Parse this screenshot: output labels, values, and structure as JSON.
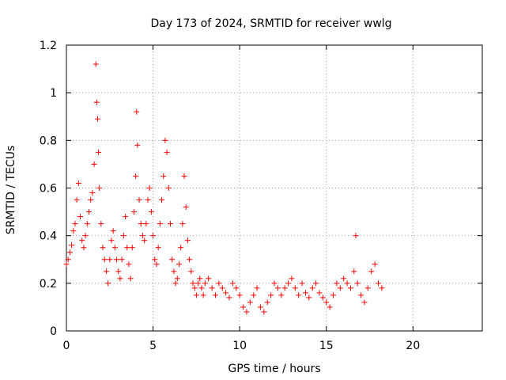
{
  "chart_data": {
    "type": "scatter",
    "title": "Day 173 of 2024, SRMTID for receiver wwlg",
    "xlabel": "GPS time / hours",
    "ylabel": "SRMTID / TECUs",
    "xlim": [
      0,
      24
    ],
    "ylim": [
      0,
      1.2
    ],
    "xticks": [
      0,
      5,
      10,
      15,
      20
    ],
    "xtick_labels": [
      "0",
      "5",
      "10",
      "15",
      "20"
    ],
    "yticks": [
      0,
      0.2,
      0.4,
      0.6,
      0.8,
      1.0,
      1.2
    ],
    "ytick_labels": [
      "0",
      "0.2",
      "0.4",
      "0.6",
      "0.8",
      "1",
      "1.2"
    ],
    "grid": true,
    "marker": "+",
    "series": [
      {
        "name": "SRMTID",
        "color": "#ff0000",
        "x": [
          0.0,
          0.1,
          0.2,
          0.3,
          0.4,
          0.5,
          0.6,
          0.7,
          0.8,
          0.9,
          1.0,
          1.1,
          1.2,
          1.3,
          1.4,
          1.5,
          1.6,
          1.7,
          1.75,
          1.8,
          1.85,
          1.9,
          2.0,
          2.1,
          2.2,
          2.3,
          2.4,
          2.5,
          2.6,
          2.7,
          2.8,
          2.9,
          3.0,
          3.1,
          3.2,
          3.3,
          3.4,
          3.5,
          3.6,
          3.7,
          3.8,
          3.9,
          4.0,
          4.05,
          4.1,
          4.2,
          4.3,
          4.4,
          4.5,
          4.6,
          4.7,
          4.8,
          4.9,
          5.0,
          5.1,
          5.2,
          5.3,
          5.4,
          5.5,
          5.6,
          5.7,
          5.8,
          5.9,
          6.0,
          6.1,
          6.2,
          6.3,
          6.4,
          6.5,
          6.6,
          6.7,
          6.8,
          6.9,
          7.0,
          7.1,
          7.2,
          7.3,
          7.4,
          7.5,
          7.6,
          7.7,
          7.8,
          7.9,
          8.0,
          8.2,
          8.4,
          8.6,
          8.8,
          9.0,
          9.2,
          9.4,
          9.6,
          9.8,
          10.0,
          10.2,
          10.4,
          10.6,
          10.8,
          11.0,
          11.2,
          11.4,
          11.6,
          11.8,
          12.0,
          12.2,
          12.4,
          12.6,
          12.8,
          13.0,
          13.2,
          13.4,
          13.6,
          13.8,
          14.0,
          14.2,
          14.4,
          14.6,
          14.8,
          15.0,
          15.2,
          15.4,
          15.6,
          15.8,
          16.0,
          16.2,
          16.4,
          16.6,
          16.7,
          16.8,
          17.0,
          17.2,
          17.4,
          17.6,
          17.8,
          18.0,
          18.2
        ],
        "y": [
          0.28,
          0.3,
          0.33,
          0.36,
          0.42,
          0.45,
          0.55,
          0.62,
          0.48,
          0.38,
          0.35,
          0.4,
          0.45,
          0.5,
          0.55,
          0.58,
          0.7,
          1.12,
          0.96,
          0.89,
          0.75,
          0.6,
          0.45,
          0.35,
          0.3,
          0.25,
          0.2,
          0.3,
          0.38,
          0.42,
          0.35,
          0.3,
          0.25,
          0.22,
          0.3,
          0.4,
          0.48,
          0.35,
          0.28,
          0.22,
          0.35,
          0.5,
          0.65,
          0.92,
          0.78,
          0.55,
          0.45,
          0.4,
          0.38,
          0.45,
          0.55,
          0.6,
          0.5,
          0.4,
          0.3,
          0.28,
          0.35,
          0.45,
          0.55,
          0.65,
          0.8,
          0.75,
          0.6,
          0.45,
          0.3,
          0.25,
          0.2,
          0.22,
          0.28,
          0.35,
          0.45,
          0.65,
          0.52,
          0.38,
          0.3,
          0.25,
          0.2,
          0.18,
          0.15,
          0.2,
          0.22,
          0.18,
          0.15,
          0.2,
          0.22,
          0.18,
          0.15,
          0.2,
          0.18,
          0.16,
          0.14,
          0.2,
          0.18,
          0.15,
          0.1,
          0.08,
          0.12,
          0.15,
          0.18,
          0.1,
          0.08,
          0.12,
          0.15,
          0.2,
          0.18,
          0.15,
          0.18,
          0.2,
          0.22,
          0.18,
          0.15,
          0.2,
          0.16,
          0.14,
          0.18,
          0.2,
          0.16,
          0.14,
          0.12,
          0.1,
          0.15,
          0.2,
          0.18,
          0.22,
          0.2,
          0.18,
          0.25,
          0.4,
          0.2,
          0.15,
          0.12,
          0.18,
          0.25,
          0.28,
          0.2,
          0.18
        ]
      }
    ]
  }
}
